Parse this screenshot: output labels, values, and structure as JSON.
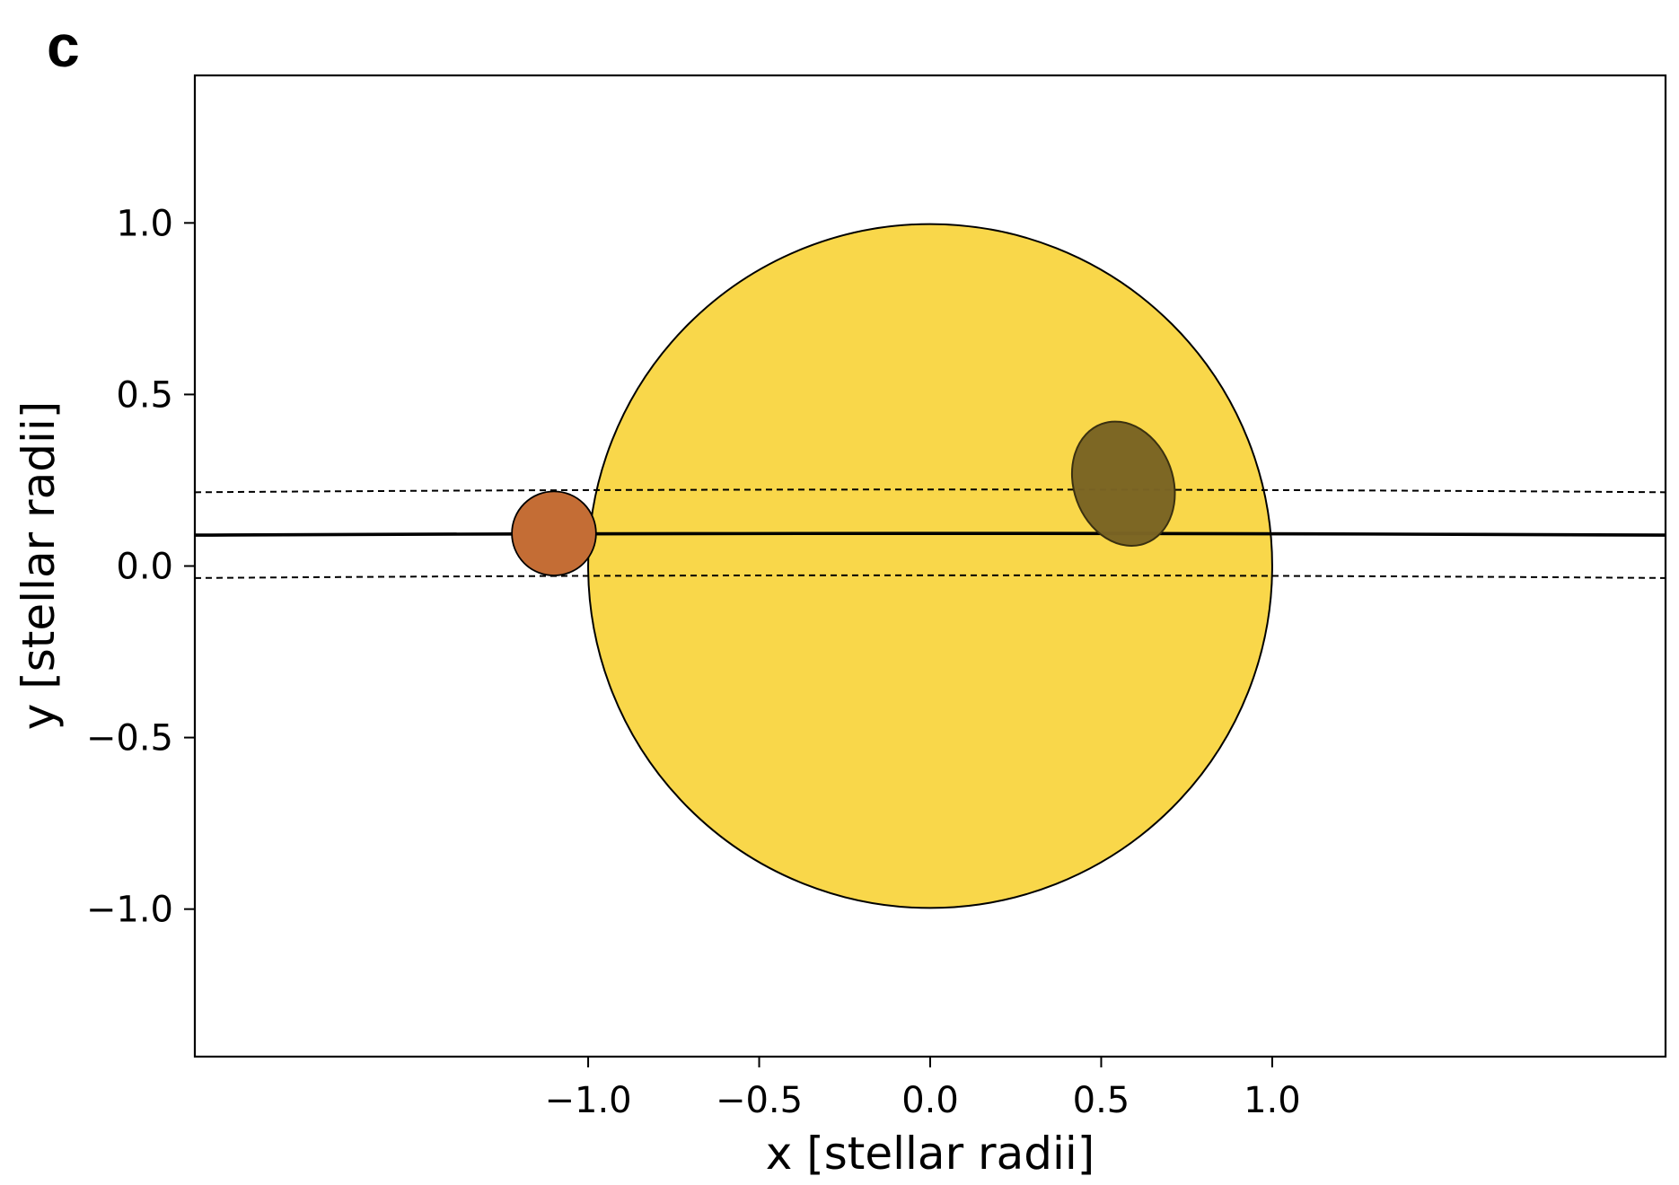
{
  "panel_label": "c",
  "chart_data": {
    "type": "scatter",
    "xlabel": "x [stellar radii]",
    "ylabel": "y [stellar radii]",
    "xlim": [
      -2.15,
      2.15
    ],
    "ylim": [
      -1.43,
      1.43
    ],
    "xticks": [
      {
        "value": -1.0,
        "label": "−1.0"
      },
      {
        "value": -0.5,
        "label": "−0.5"
      },
      {
        "value": 0.0,
        "label": "0.0"
      },
      {
        "value": 0.5,
        "label": "0.5"
      },
      {
        "value": 1.0,
        "label": "1.0"
      }
    ],
    "yticks": [
      {
        "value": 1.0,
        "label": "1.0"
      },
      {
        "value": 0.5,
        "label": "0.5"
      },
      {
        "value": 0.0,
        "label": "0.0"
      },
      {
        "value": -0.5,
        "label": "−0.5"
      },
      {
        "value": -1.0,
        "label": "−1.0"
      }
    ],
    "grid": false,
    "star": {
      "x": 0.0,
      "y": 0.0,
      "radius": 1.0,
      "color": "#F9D74A"
    },
    "planet": {
      "x": -1.1,
      "y": 0.095,
      "radius": 0.123,
      "color": "#C46D35"
    },
    "spot": {
      "x": 0.565,
      "y": 0.24,
      "rx": 0.145,
      "ry": 0.186,
      "rotation_deg": -20,
      "color": "#7A6424"
    },
    "transit_chord": {
      "center": [
        [
          -2.15,
          0.09
        ],
        [
          0.0,
          0.095
        ],
        [
          2.15,
          0.09
        ]
      ],
      "upper": [
        [
          -2.15,
          0.215
        ],
        [
          0.0,
          0.223
        ],
        [
          2.15,
          0.215
        ]
      ],
      "lower": [
        [
          -2.15,
          -0.035
        ],
        [
          0.0,
          -0.027
        ],
        [
          2.15,
          -0.035
        ]
      ]
    }
  }
}
